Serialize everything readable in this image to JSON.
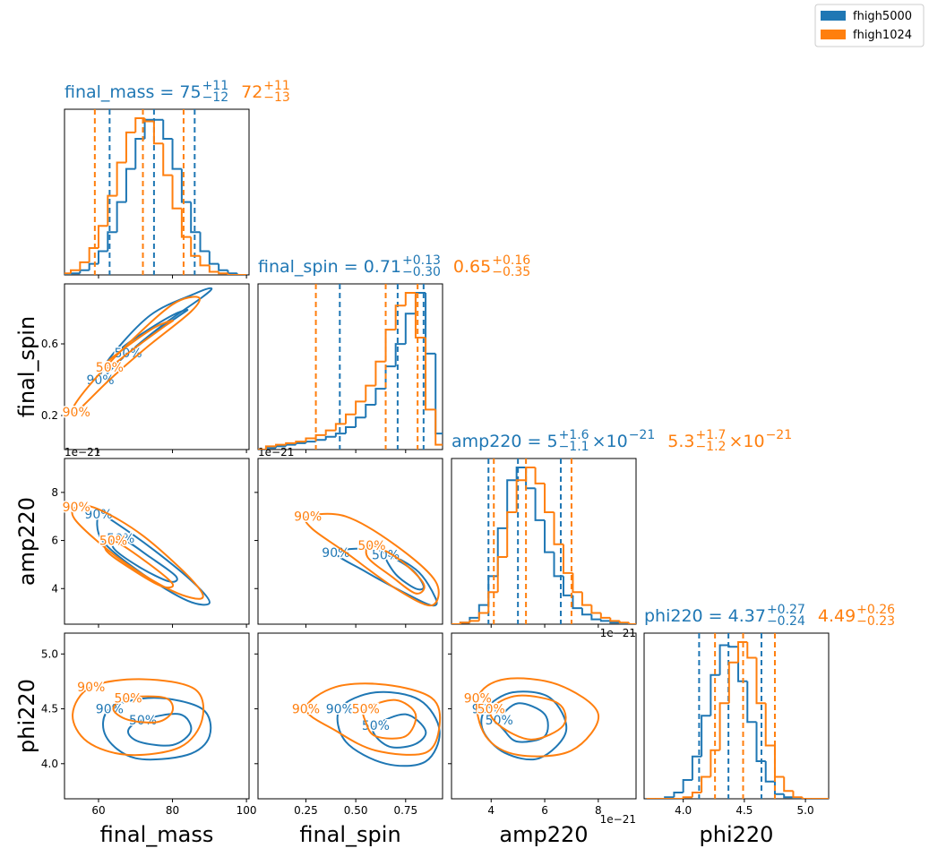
{
  "chart_data": {
    "type": "corner",
    "legend": "upper right",
    "series": [
      {
        "name": "fhigh5000",
        "color": "#1f77b4"
      },
      {
        "name": "fhigh1024",
        "color": "#ff7f0e"
      }
    ],
    "parameters": [
      {
        "name": "final_mass",
        "xlim": [
          50.8,
          100.7
        ],
        "xticks": [
          60,
          80,
          100
        ],
        "yticks": [],
        "bins": [
          50,
          52.5,
          55,
          57.5,
          60,
          62.5,
          65,
          67.5,
          70,
          72.5,
          75,
          77.5,
          80,
          82.5,
          85,
          87.5,
          90,
          92.5,
          95,
          97.5,
          100
        ],
        "summaries": [
          {
            "text": "final_mass = 75",
            "plus": "+11",
            "minus": "−12",
            "quantiles": [
              63,
              75,
              86
            ],
            "counts": [
              0,
              1,
              3,
              7,
              15,
              27,
              46,
              67,
              86,
              98,
              98,
              86,
              67,
              46,
              27,
              15,
              7,
              3,
              1,
              0
            ]
          },
          {
            "text": "72",
            "plus": "+11",
            "minus": "−13",
            "quantiles": [
              59,
              72,
              83
            ],
            "counts": [
              1,
              3,
              8,
              17,
              31,
              50,
              71,
              90,
              99,
              97,
              83,
              63,
              42,
              24,
              12,
              6,
              2,
              1,
              0,
              0
            ]
          }
        ]
      },
      {
        "name": "final_spin",
        "xlim": [
          0.01,
          0.935
        ],
        "xticks": [
          0.25,
          {
            "value": 0.5,
            "label": "0.50"
          },
          0.75
        ],
        "yticks": [
          0.2,
          0.6
        ],
        "bins": [
          0,
          0.05,
          0.1,
          0.15,
          0.2,
          0.25,
          0.3,
          0.35,
          0.4,
          0.45,
          0.5,
          0.55,
          0.6,
          0.65,
          0.7,
          0.75,
          0.8,
          0.85,
          0.9,
          0.95
        ],
        "summaries": [
          {
            "text": "final_spin = 0.71",
            "plus": "+0.13",
            "minus": "−0.30",
            "quantiles": [
              0.42,
              0.71,
              0.84
            ],
            "counts": [
              0,
              1,
              2,
              3,
              4,
              5,
              6,
              8,
              10,
              14,
              20,
              28,
              38,
              52,
              66,
              85,
              98,
              60,
              10
            ]
          },
          {
            "text": "0.65",
            "plus": "+0.16",
            "minus": "−0.35",
            "quantiles": [
              0.3,
              0.65,
              0.81
            ],
            "counts": [
              0,
              2,
              3,
              4,
              5,
              7,
              9,
              12,
              16,
              22,
              30,
              40,
              55,
              75,
              90,
              98,
              70,
              25,
              3
            ]
          }
        ]
      },
      {
        "name": "amp220",
        "xlim": [
          2.52,
          9.41
        ],
        "xticks": [
          4,
          6,
          8
        ],
        "yticks": [
          4,
          6,
          8
        ],
        "offset_label": "1e−21",
        "bins": [
          2.5,
          2.85,
          3.2,
          3.55,
          3.9,
          4.25,
          4.6,
          4.95,
          5.3,
          5.65,
          6,
          6.35,
          6.7,
          7.05,
          7.4,
          7.75,
          8.1,
          8.45,
          8.8,
          9.15,
          9.5
        ],
        "summaries": [
          {
            "text": "amp220 = 5",
            "plus": "+1.6",
            "minus": "−1.1",
            "factor": "×10",
            "factor_exponent": "−21",
            "quantiles": [
              3.9,
              5.0,
              6.6
            ],
            "counts": [
              0,
              1,
              4,
              12,
              30,
              60,
              90,
              98,
              85,
              65,
              45,
              30,
              18,
              10,
              6,
              3,
              2,
              1,
              0,
              0
            ]
          },
          {
            "text": "5.3",
            "plus": "+1.7",
            "minus": "−1.2",
            "factor": "×10",
            "factor_exponent": "−21",
            "quantiles": [
              4.1,
              5.3,
              7.0
            ],
            "counts": [
              0,
              1,
              2,
              7,
              20,
              42,
              70,
              90,
              98,
              88,
              70,
              50,
              32,
              20,
              12,
              7,
              4,
              2,
              1,
              0
            ]
          }
        ]
      },
      {
        "name": "phi220",
        "xlim": [
          3.68,
          5.19
        ],
        "xticks": [
          {
            "value": 4.0,
            "label": "4.0"
          },
          4.5,
          {
            "value": 5.0,
            "label": "5.0"
          }
        ],
        "yticks": [
          {
            "value": 4.0,
            "label": "4.0"
          },
          4.5,
          {
            "value": 5.0,
            "label": "5.0"
          }
        ],
        "bins": [
          3.7,
          3.775,
          3.85,
          3.925,
          4,
          4.075,
          4.15,
          4.225,
          4.3,
          4.375,
          4.45,
          4.525,
          4.6,
          4.675,
          4.75,
          4.825,
          4.9,
          4.975,
          5.05,
          5.125,
          5.2
        ],
        "summaries": [
          {
            "text": "phi220 = 4.37",
            "plus": "+0.27",
            "minus": "−0.24",
            "quantiles": [
              4.13,
              4.37,
              4.64
            ],
            "counts": [
              0,
              0,
              1,
              4,
              12,
              27,
              53,
              79,
              98,
              97,
              75,
              49,
              24,
              11,
              3,
              1,
              0,
              0,
              0,
              0
            ]
          },
          {
            "text": "4.49",
            "plus": "+0.26",
            "minus": "−0.23",
            "quantiles": [
              4.26,
              4.49,
              4.75
            ],
            "counts": [
              0,
              0,
              0,
              0,
              1,
              4,
              14,
              31,
              61,
              87,
              100,
              90,
              61,
              34,
              14,
              5,
              1,
              0,
              0,
              0
            ]
          }
        ]
      }
    ],
    "contours": [
      [
        [
          [
            {
              "level": "90%",
              "x": [
                60.5,
                67,
                77,
                88,
                90.5,
                86,
                74,
                63
              ],
              "y": [
                0.4,
                0.53,
                0.7,
                0.86,
                0.91,
                0.88,
                0.76,
                0.52
              ]
            },
            {
              "level": "50%",
              "x": [
                68,
                75,
                82,
                84,
                80,
                72,
                66
              ],
              "y": [
                0.55,
                0.66,
                0.76,
                0.79,
                0.76,
                0.66,
                0.57
              ]
            }
          ],
          [
            {
              "level": "90%",
              "x": [
                54,
                63,
                73,
                85,
                87,
                80,
                68,
                58,
                53
              ],
              "y": [
                0.22,
                0.4,
                0.58,
                0.78,
                0.86,
                0.82,
                0.6,
                0.38,
                0.24
              ]
            },
            {
              "level": "50%",
              "x": [
                63,
                70,
                78,
                80,
                75,
                66,
                62
              ],
              "y": [
                0.47,
                0.58,
                0.7,
                0.73,
                0.69,
                0.56,
                0.49
              ]
            }
          ]
        ]
      ],
      [
        [
          [
            {
              "level": "90%",
              "x": [
                60,
                63,
                75,
                86,
                90,
                84,
                72,
                61
              ],
              "y": [
                7.1,
                6.9,
                5.6,
                4.2,
                3.4,
                3.5,
                4.6,
                6.0
              ]
            },
            {
              "level": "50%",
              "x": [
                66,
                74,
                81,
                79,
                71,
                64
              ],
              "y": [
                6.1,
                5.3,
                4.5,
                4.3,
                4.9,
                5.7
              ]
            }
          ],
          [
            {
              "level": "90%",
              "x": [
                54,
                60,
                72,
                85,
                88,
                80,
                66,
                54
              ],
              "y": [
                7.4,
                7.3,
                6.2,
                4.4,
                3.6,
                3.9,
                5.2,
                6.8
              ]
            },
            {
              "level": "50%",
              "x": [
                64,
                73,
                80,
                77,
                69,
                62
              ],
              "y": [
                6.0,
                5.1,
                4.2,
                4.1,
                4.8,
                5.6
              ]
            }
          ]
        ],
        [
          [
            {
              "level": "90%",
              "x": [
                0.4,
                0.6,
                0.8,
                0.9,
                0.88,
                0.75,
                0.55
              ],
              "y": [
                5.5,
                5.6,
                4.8,
                3.6,
                3.3,
                3.8,
                4.7
              ]
            },
            {
              "level": "50%",
              "x": [
                0.65,
                0.78,
                0.84,
                0.8,
                0.7
              ],
              "y": [
                5.4,
                4.8,
                4.1,
                4.0,
                4.6
              ]
            }
          ],
          [
            {
              "level": "90%",
              "x": [
                0.26,
                0.45,
                0.7,
                0.9,
                0.88,
                0.7,
                0.45,
                0.28
              ],
              "y": [
                7.0,
                7.0,
                5.8,
                4.3,
                3.3,
                4.0,
                5.5,
                6.5
              ]
            },
            {
              "level": "50%",
              "x": [
                0.58,
                0.72,
                0.84,
                0.8,
                0.68,
                0.56
              ],
              "y": [
                5.8,
                5.2,
                4.2,
                3.8,
                4.5,
                5.3
              ]
            }
          ]
        ]
      ],
      [
        [
          [
            {
              "level": "90%",
              "x": [
                63,
                75,
                88,
                90,
                84,
                70,
                62
              ],
              "y": [
                4.5,
                4.6,
                4.5,
                4.25,
                4.08,
                4.05,
                4.25
              ]
            },
            {
              "level": "50%",
              "x": [
                72,
                82,
                85,
                80,
                71,
                68
              ],
              "y": [
                4.4,
                4.45,
                4.3,
                4.17,
                4.2,
                4.3
              ]
            }
          ],
          [
            {
              "level": "90%",
              "x": [
                58,
                72,
                86,
                88,
                82,
                68,
                57,
                53
              ],
              "y": [
                4.7,
                4.77,
                4.68,
                4.4,
                4.15,
                4.08,
                4.2,
                4.45
              ]
            },
            {
              "level": "50%",
              "x": [
                68,
                78,
                80,
                76,
                68,
                64
              ],
              "y": [
                4.6,
                4.6,
                4.48,
                4.38,
                4.4,
                4.5
              ]
            }
          ]
        ],
        [
          [
            {
              "level": "90%",
              "x": [
                0.42,
                0.6,
                0.82,
                0.92,
                0.85,
                0.65,
                0.45
              ],
              "y": [
                4.5,
                4.65,
                4.58,
                4.3,
                4.02,
                4.0,
                4.2
              ]
            },
            {
              "level": "50%",
              "x": [
                0.6,
                0.75,
                0.85,
                0.8,
                0.68,
                0.6
              ],
              "y": [
                4.35,
                4.45,
                4.3,
                4.18,
                4.15,
                4.25
              ]
            }
          ],
          [
            {
              "level": "90%",
              "x": [
                0.25,
                0.4,
                0.65,
                0.88,
                0.92,
                0.85,
                0.6,
                0.4
              ],
              "y": [
                4.5,
                4.7,
                4.72,
                4.6,
                4.35,
                4.1,
                4.12,
                4.3
              ]
            },
            {
              "level": "50%",
              "x": [
                0.55,
                0.7,
                0.8,
                0.75,
                0.6,
                0.55
              ],
              "y": [
                4.5,
                4.58,
                4.45,
                4.25,
                4.25,
                4.38
              ]
            }
          ]
        ],
        [
          [
            {
              "level": "90%",
              "x": [
                3.8,
                4.8,
                6.2,
                6.8,
                5.8,
                4.5,
                3.7
              ],
              "y": [
                4.5,
                4.65,
                4.6,
                4.3,
                4.05,
                4.1,
                4.3
              ]
            },
            {
              "level": "50%",
              "x": [
                4.3,
                5.0,
                6.0,
                6.0,
                5.0,
                4.5
              ],
              "y": [
                4.4,
                4.55,
                4.45,
                4.25,
                4.2,
                4.3
              ]
            }
          ],
          [
            {
              "level": "90%",
              "x": [
                3.5,
                4.5,
                6.5,
                8.0,
                7.0,
                5.0,
                3.8
              ],
              "y": [
                4.6,
                4.77,
                4.72,
                4.45,
                4.12,
                4.08,
                4.25
              ]
            },
            {
              "level": "50%",
              "x": [
                4.0,
                5.0,
                6.5,
                6.7,
                5.5,
                4.3
              ],
              "y": [
                4.5,
                4.62,
                4.55,
                4.35,
                4.22,
                4.35
              ]
            }
          ]
        ]
      ]
    ]
  }
}
